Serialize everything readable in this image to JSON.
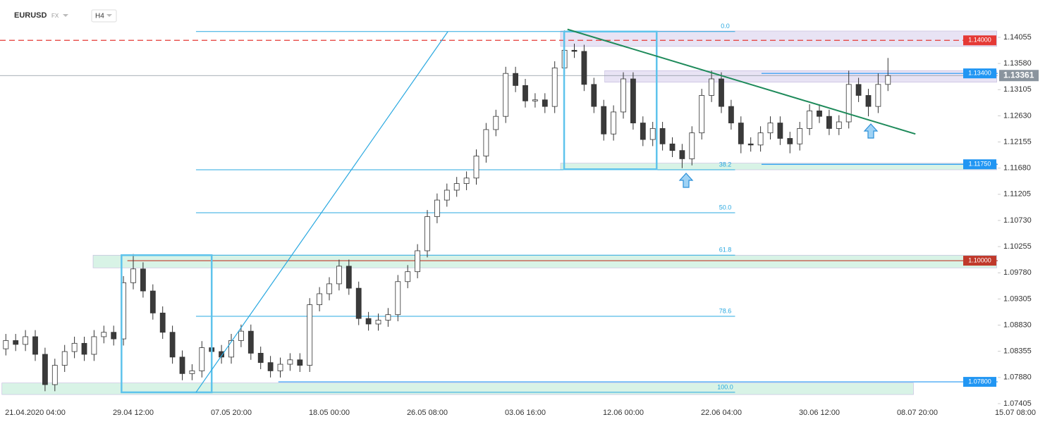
{
  "header": {
    "symbol": "EURUSD",
    "market": "FX",
    "timeframe": "H4"
  },
  "chart_data": {
    "type": "candlestick",
    "categories": [
      null,
      null,
      null,
      "21.04.2020 04:00",
      null,
      null,
      null,
      null,
      null,
      null,
      null,
      null,
      null,
      "29.04 12:00",
      null,
      null,
      null,
      null,
      null,
      null,
      null,
      null,
      null,
      "07.05 20:00",
      null,
      null,
      null,
      null,
      null,
      null,
      null,
      null,
      null,
      "18.05 00:00",
      null,
      null,
      null,
      null,
      null,
      null,
      null,
      null,
      null,
      "26.05 08:00",
      null,
      null,
      null,
      null,
      null,
      null,
      null,
      null,
      null,
      "03.06 16:00",
      null,
      null,
      null,
      null,
      null,
      null,
      null,
      null,
      null,
      "12.06 00:00",
      null,
      null,
      null,
      null,
      null,
      null,
      null,
      null,
      null,
      "22.06 04:00",
      null,
      null,
      null,
      null,
      null,
      null,
      null,
      null,
      null,
      "30.06 12:00",
      null,
      null,
      null,
      null,
      null,
      null,
      null,
      null,
      null,
      "08.07 20:00",
      null,
      null,
      null,
      null,
      null,
      null,
      null,
      null,
      null,
      "15.07 08:00"
    ],
    "open": [
      1.084,
      1.0855,
      1.0848,
      1.0862,
      1.083,
      1.0775,
      1.081,
      1.0835,
      1.085,
      1.083,
      1.0862,
      1.087,
      1.0858,
      1.096,
      1.0985,
      1.0945,
      1.0905,
      1.087,
      1.0825,
      1.0795,
      1.08,
      1.0842,
      1.0835,
      1.0825,
      1.0855,
      1.0872,
      1.0832,
      1.0815,
      1.08,
      1.0812,
      1.082,
      1.081,
      1.092,
      1.094,
      1.0958,
      1.099,
      1.095,
      1.0895,
      1.0885,
      1.0892,
      1.0902,
      1.0962,
      1.098,
      1.1018,
      1.108,
      1.111,
      1.1128,
      1.114,
      1.115,
      1.119,
      1.1238,
      1.1262,
      1.134,
      1.1318,
      1.129,
      1.1292,
      1.128,
      1.135,
      1.1382,
      1.138,
      1.132,
      1.128,
      1.123,
      1.127,
      1.133,
      1.125,
      1.122,
      1.124,
      1.1212,
      1.12,
      1.1185,
      1.1232,
      1.13,
      1.133,
      1.128,
      1.125,
      1.1212,
      1.121,
      1.1232,
      1.125,
      1.1222,
      1.1212,
      1.124,
      1.1272,
      1.1262,
      1.124,
      1.1252,
      1.132,
      1.13,
      1.128,
      1.132,
      null,
      null,
      null,
      null,
      null,
      null,
      null,
      null,
      null,
      null,
      null,
      null,
      null
    ],
    "high": [
      1.0867,
      1.0867,
      1.0874,
      1.0874,
      1.0842,
      1.0822,
      1.0847,
      1.0862,
      1.0862,
      1.0874,
      1.0882,
      1.0882,
      1.0972,
      1.1012,
      1.0997,
      1.0957,
      1.0917,
      1.0882,
      1.0837,
      1.0812,
      1.0854,
      1.0854,
      1.0847,
      1.0867,
      1.0884,
      1.0884,
      1.0844,
      1.0827,
      1.0824,
      1.0832,
      1.0832,
      1.0932,
      1.0952,
      1.097,
      1.1002,
      1.1002,
      1.0962,
      1.0907,
      1.0904,
      1.0914,
      1.0974,
      1.0992,
      1.103,
      1.1092,
      1.1122,
      1.114,
      1.1152,
      1.1162,
      1.1202,
      1.125,
      1.1274,
      1.1352,
      1.1352,
      1.133,
      1.1304,
      1.1304,
      1.1362,
      1.1418,
      1.1394,
      1.1392,
      1.1332,
      1.1292,
      1.1282,
      1.1342,
      1.1342,
      1.1262,
      1.1252,
      1.1252,
      1.1224,
      1.1212,
      1.1244,
      1.1312,
      1.1345,
      1.1342,
      1.1292,
      1.1262,
      1.1224,
      1.1244,
      1.1262,
      1.1262,
      1.1234,
      1.1252,
      1.1284,
      1.1284,
      1.1274,
      1.1264,
      1.1345,
      1.1332,
      1.1312,
      1.134,
      1.1368,
      null,
      null,
      null,
      null,
      null,
      null,
      null,
      null,
      null,
      null,
      null,
      null,
      null
    ],
    "low": [
      1.0828,
      1.0836,
      1.0836,
      1.0818,
      1.0763,
      1.0763,
      1.0798,
      1.0823,
      1.0818,
      1.0818,
      1.085,
      1.0846,
      1.0846,
      1.0948,
      1.0933,
      1.0893,
      1.0858,
      1.0813,
      1.0783,
      1.0783,
      1.0788,
      1.0823,
      1.0813,
      1.0813,
      1.0843,
      1.082,
      1.0803,
      1.0788,
      1.0788,
      1.08,
      1.0798,
      1.0798,
      1.0908,
      1.0928,
      1.0946,
      1.0938,
      1.0883,
      1.0873,
      1.0873,
      1.088,
      1.089,
      1.095,
      1.0968,
      1.1006,
      1.1068,
      1.1098,
      1.1116,
      1.1128,
      1.1138,
      1.1178,
      1.1226,
      1.125,
      1.1306,
      1.1278,
      1.1278,
      1.1268,
      1.1268,
      1.1338,
      1.1368,
      1.1308,
      1.1268,
      1.1218,
      1.1218,
      1.1258,
      1.1238,
      1.1208,
      1.1208,
      1.12,
      1.1188,
      1.1168,
      1.1173,
      1.122,
      1.1288,
      1.1268,
      1.1238,
      1.1195,
      1.1198,
      1.1198,
      1.122,
      1.121,
      1.1195,
      1.12,
      1.1228,
      1.125,
      1.1228,
      1.1228,
      1.124,
      1.1288,
      1.1262,
      1.1268,
      1.1308,
      null,
      null,
      null,
      null,
      null,
      null,
      null,
      null,
      null,
      null,
      null,
      null,
      null
    ],
    "close": [
      1.0855,
      1.0848,
      1.0862,
      1.083,
      1.0775,
      1.081,
      1.0835,
      1.085,
      1.083,
      1.0862,
      1.087,
      1.0858,
      1.096,
      1.0985,
      1.0945,
      1.0905,
      1.087,
      1.0825,
      1.0795,
      1.08,
      1.0842,
      1.0835,
      1.0825,
      1.0855,
      1.0872,
      1.0832,
      1.0815,
      1.08,
      1.0812,
      1.082,
      1.081,
      1.092,
      1.094,
      1.0958,
      1.099,
      1.095,
      1.0895,
      1.0885,
      1.0892,
      1.0902,
      1.0962,
      1.098,
      1.1018,
      1.108,
      1.111,
      1.1128,
      1.114,
      1.115,
      1.119,
      1.1238,
      1.1262,
      1.134,
      1.1318,
      1.129,
      1.1292,
      1.128,
      1.135,
      1.1382,
      1.138,
      1.132,
      1.128,
      1.123,
      1.127,
      1.133,
      1.125,
      1.122,
      1.124,
      1.1212,
      1.12,
      1.1185,
      1.1232,
      1.13,
      1.133,
      1.128,
      1.125,
      1.1212,
      1.121,
      1.1232,
      1.125,
      1.1222,
      1.1212,
      1.124,
      1.1272,
      1.1262,
      1.124,
      1.1252,
      1.132,
      1.13,
      1.128,
      1.132,
      1.1336,
      null,
      null,
      null,
      null,
      null,
      null,
      null,
      null,
      null,
      null,
      null,
      null,
      null
    ],
    "up_color": "#ffffff",
    "down_color": "#3a3a3a",
    "wick_color": "#333333",
    "ylim": [
      1.07315,
      1.14221
    ],
    "yticks": [
      1.14055,
      {
        "value": 1.1358,
        "label": "1.13580"
      },
      1.13105,
      {
        "value": 1.1263,
        "label": "1.12630"
      },
      1.12155,
      {
        "value": 1.1168,
        "label": "1.11680"
      },
      1.11205,
      {
        "value": 1.1073,
        "label": "1.10730"
      },
      1.10255,
      {
        "value": 1.0978,
        "label": "1.09780"
      },
      1.09305,
      {
        "value": 1.0883,
        "label": "1.08830"
      },
      1.08355,
      {
        "value": 1.0788,
        "label": "1.07880"
      },
      1.07405
    ],
    "current_price": 1.13361,
    "current_color": "#8a949e",
    "levels": [
      {
        "value": 1.14,
        "label": "1.14000",
        "color": "#e53935",
        "dash": true,
        "from": -1
      },
      {
        "value": 1.134,
        "label": "1.13400",
        "color": "#2196f3",
        "dash": false,
        "from": 77.1
      },
      {
        "value": 1.1175,
        "label": "1.11750",
        "color": "#2196f3",
        "dash": false,
        "from": 77.1
      },
      {
        "value": 1.1,
        "label": "1.10000",
        "color": "#c0392b",
        "dash": false,
        "from": 12.4
      },
      {
        "value": 1.078,
        "label": "1.07800",
        "color": "#2196f3",
        "dash": false,
        "from": 27.8
      }
    ],
    "fib": {
      "from": 19.4,
      "to": 74.4,
      "color": "#29a8e0",
      "levels": [
        {
          "value": 1.1416,
          "label": "0.0"
        },
        {
          "value": 1.1165,
          "label": "38.2"
        },
        {
          "value": 1.1087,
          "label": "50.0"
        },
        {
          "value": 1.101,
          "label": "61.8"
        },
        {
          "value": 1.0899,
          "label": "78.6"
        },
        {
          "value": 1.0761,
          "label": "100.0"
        }
      ]
    },
    "zones": [
      {
        "x": [
          56.6,
          101.1
        ],
        "y": [
          1.1389,
          1.1417
        ],
        "color": "#e6e0f3"
      },
      {
        "x": [
          61.1,
          101.1
        ],
        "y": [
          1.1324,
          1.1345
        ],
        "color": "#e6e0f3"
      },
      {
        "x": [
          56.6,
          101.1
        ],
        "y": [
          1.1165,
          1.1177
        ],
        "color": "#d4f2e4"
      },
      {
        "x": [
          8.9,
          101.1
        ],
        "y": [
          1.0987,
          1.101
        ],
        "color": "#d4f2e4"
      },
      {
        "x": [
          -0.4,
          92.6
        ],
        "y": [
          1.0757,
          1.0778
        ],
        "color": "#d4f2e4"
      }
    ],
    "boxes": [
      {
        "x": [
          11.8,
          21.0
        ],
        "y": [
          1.0761,
          1.101
        ],
        "color": "#5ec3ec"
      },
      {
        "x": [
          56.96,
          66.4
        ],
        "y": [
          1.1166,
          1.1416
        ],
        "color": "#5ec3ec"
      }
    ],
    "trendlines": [
      {
        "x": [
          57.3,
          92.8
        ],
        "y": [
          1.142,
          1.123
        ],
        "color": "#1e8a5a"
      },
      {
        "x": [
          19.4,
          45.1
        ],
        "y": [
          1.0761,
          1.1416
        ],
        "color": "#29a8e0"
      }
    ]
  }
}
